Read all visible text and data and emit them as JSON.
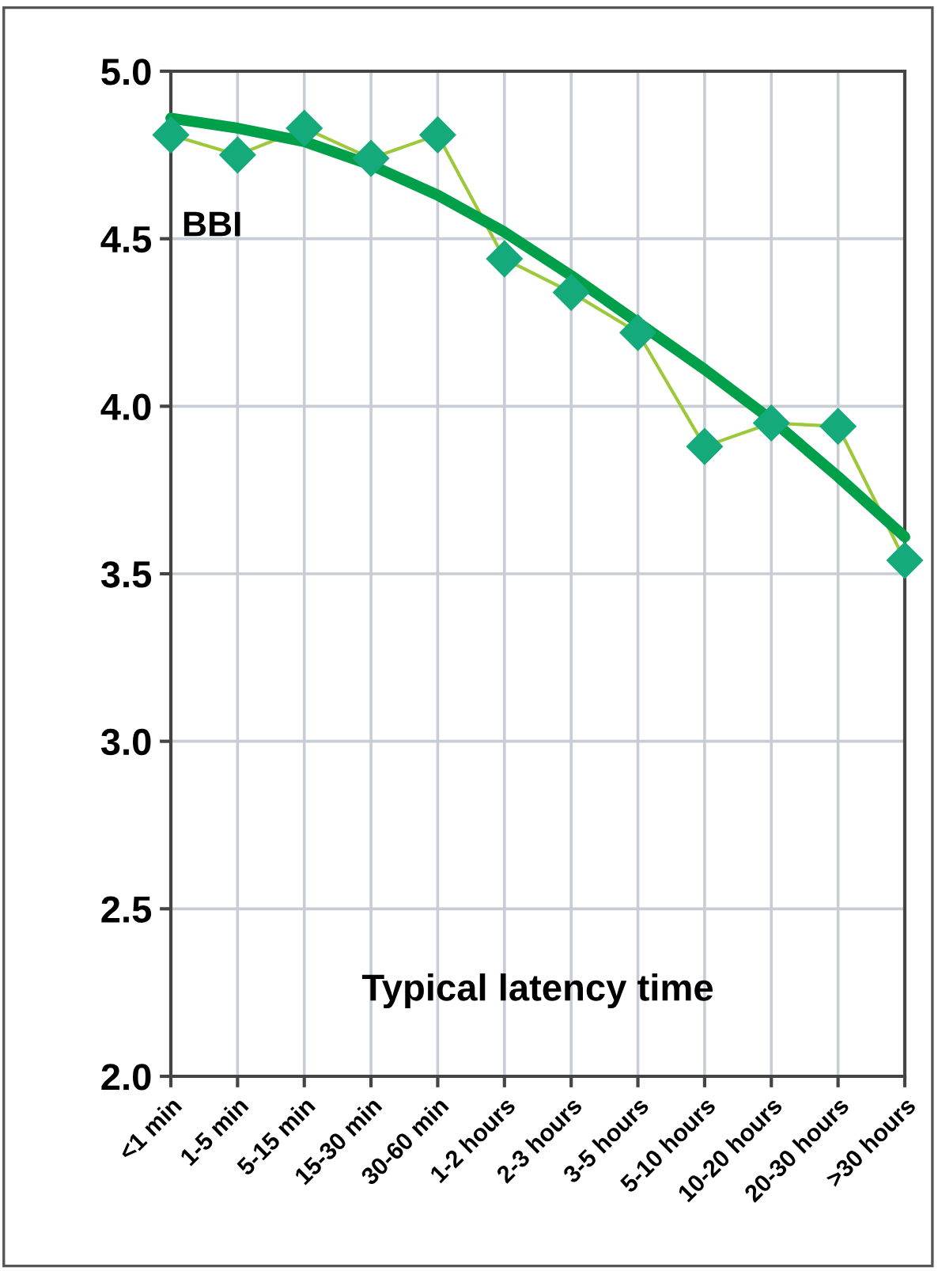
{
  "chart_data": {
    "type": "line",
    "xlabel": "Typical latency time",
    "ylabel": "BBI",
    "categories": [
      "<1 min",
      "1-5 min",
      "5-15 min",
      "15-30 min",
      "30-60 min",
      "1-2 hours",
      "2-3 hours",
      "3-5 hours",
      "5-10 hours",
      "10-20 hours",
      "20-30 hours",
      ">30 hours"
    ],
    "series": [
      {
        "color": "#9cc83a",
        "values": [
          4.81,
          4.75,
          4.83,
          4.74,
          4.81,
          4.44,
          4.34,
          4.22,
          3.88,
          3.95,
          3.94,
          3.54
        ],
        "marker": "diamond"
      },
      {
        "color": "#00a04a",
        "values": [
          4.86,
          4.83,
          4.79,
          4.72,
          4.63,
          4.52,
          4.39,
          4.25,
          4.11,
          3.96,
          3.79,
          3.61
        ],
        "marker": "none"
      }
    ],
    "ylim": [
      2.0,
      5.0
    ],
    "yticks": [
      {
        "value": 2,
        "label": "2.0"
      },
      {
        "value": 2.5,
        "label": "2.5"
      },
      {
        "value": 3,
        "label": "3.0"
      },
      {
        "value": 3.5,
        "label": "3.5"
      },
      {
        "value": 4,
        "label": "4.0"
      },
      {
        "value": 4.5,
        "label": "4.5"
      },
      {
        "value": 5,
        "label": "5.0"
      }
    ],
    "grid": true,
    "legend": false
  }
}
